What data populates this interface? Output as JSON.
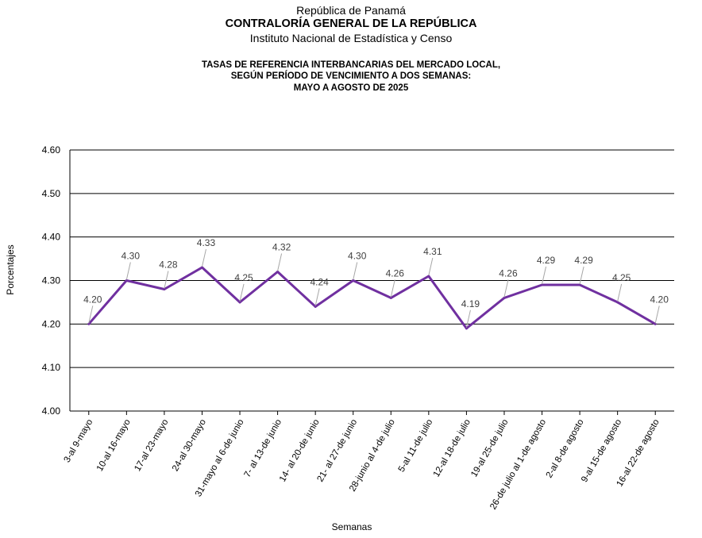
{
  "header": {
    "country": "República de Panamá",
    "agency": "CONTRALORÍA GENERAL DE LA REPÚBLICA",
    "institute": "Instituto Nacional de Estadística y Censo"
  },
  "chart_data": {
    "type": "line",
    "title_lines": [
      "TASAS DE REFERENCIA INTERBANCARIAS DEL MERCADO LOCAL,",
      "SEGÚN PERÍODO DE VENCIMIENTO A DOS SEMANAS:",
      "MAYO A AGOSTO DE 2025"
    ],
    "xlabel": "Semanas",
    "ylabel": "Porcentajes",
    "ylim": [
      4.0,
      4.6
    ],
    "yticks": [
      "4.00",
      "4.10",
      "4.20",
      "4.30",
      "4.40",
      "4.50",
      "4.60"
    ],
    "grid": true,
    "line_color": "#7030A0",
    "categories": [
      "3-al 9-mayo",
      "10-al 16-mayo",
      "17-al 23-mayo",
      "24-al 30-mayo",
      "31-mayo al 6-de junio",
      "7- al 13-de junio",
      "14- al 20-de junio",
      "21- al 27-de junio",
      "28-junio al 4-de julio",
      "5-al 11-de julio",
      "12-al 18-de julio",
      "19-al 25-de julio",
      "26-de julio al 1-de agosto",
      "2-al 8-de agosto",
      "9-al 15-de agosto",
      "16-al 22-de agosto"
    ],
    "values": [
      4.2,
      4.3,
      4.28,
      4.33,
      4.25,
      4.32,
      4.24,
      4.3,
      4.26,
      4.31,
      4.19,
      4.26,
      4.29,
      4.29,
      4.25,
      4.2
    ],
    "data_labels": [
      "4.20",
      "4.30",
      "4.28",
      "4.33",
      "4.25",
      "4.32",
      "4.24",
      "4.30",
      "4.26",
      "4.31",
      "4.19",
      "4.26",
      "4.29",
      "4.29",
      "4.25",
      "4.20"
    ]
  }
}
